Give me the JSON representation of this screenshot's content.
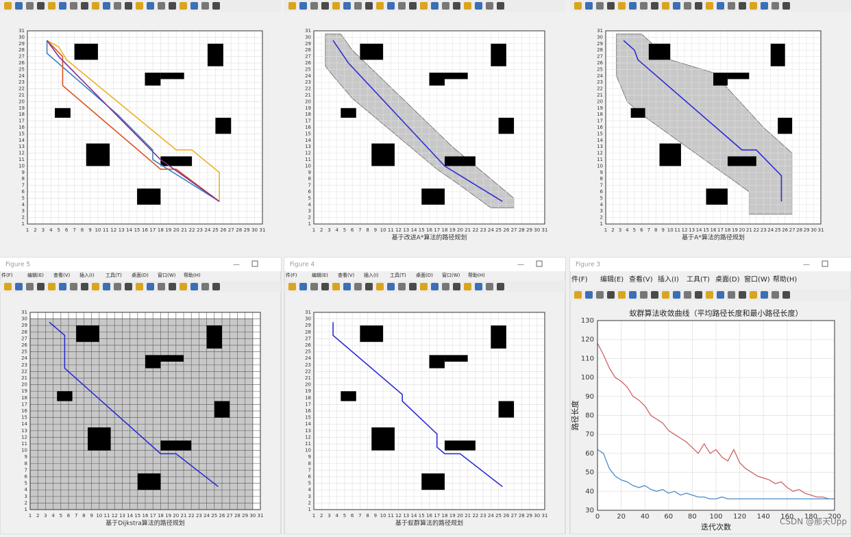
{
  "map_ticks": [
    1,
    2,
    3,
    4,
    5,
    6,
    7,
    8,
    9,
    10,
    11,
    12,
    13,
    14,
    15,
    16,
    17,
    18,
    19,
    20,
    21,
    22,
    23,
    24,
    25,
    26,
    27,
    28,
    29,
    30,
    31
  ],
  "map_lim": [
    1,
    31
  ],
  "menu": [
    "件(F)",
    "编辑(E)",
    "查看(V)",
    "插入(I)",
    "工具(T)",
    "桌面(D)",
    "窗口(W)",
    "帮助(H)"
  ],
  "windows": [
    {
      "title": "Figure 5"
    },
    {
      "title": "Figure 4"
    },
    {
      "title": "Figure 3"
    }
  ],
  "obstacles": [
    [
      7,
      26.5,
      10,
      29
    ],
    [
      24,
      25.5,
      26,
      29
    ],
    [
      16,
      22.5,
      18,
      24.5
    ],
    [
      18,
      23.5,
      21,
      24.5
    ],
    [
      4.5,
      17.5,
      6.5,
      19
    ],
    [
      25,
      15,
      27,
      17.5
    ],
    [
      8.5,
      10,
      11.5,
      13.5
    ],
    [
      18,
      10,
      22,
      11.5
    ],
    [
      15,
      4,
      18,
      6.5
    ]
  ],
  "maps": [
    {
      "grid_color": "#e2e2e2",
      "paths": [
        {
          "color": "#3a7fc0",
          "x": [
            3.5,
            3.5,
            12.5,
            17,
            17,
            25.5
          ],
          "y": [
            29.5,
            27.5,
            18,
            12.5,
            11,
            4.5
          ]
        },
        {
          "color": "#d9531e",
          "x": [
            3.5,
            5.5,
            5.5,
            18,
            20,
            25.5
          ],
          "y": [
            29.5,
            27,
            22.5,
            9.5,
            9.5,
            4.5
          ]
        },
        {
          "color": "#edb120",
          "x": [
            3.5,
            5,
            6,
            20,
            22,
            25.5,
            25.5
          ],
          "y": [
            29.5,
            28.5,
            26.5,
            12.5,
            12.5,
            9,
            4.5
          ]
        },
        {
          "color": "#7e2f8e",
          "x": [
            3.5,
            5,
            18,
            25.5
          ],
          "y": [
            29.5,
            27,
            11,
            4.5
          ]
        }
      ]
    },
    {
      "caption": "基于改进A*算法的路径规划",
      "grid_color": "#e2e2e2",
      "explored": {
        "x": [
          2.5,
          4.5,
          6,
          19,
          23,
          27,
          27,
          24,
          20,
          17,
          6,
          3.5,
          2.5
        ],
        "y": [
          30.5,
          30.5,
          28,
          13,
          9,
          5,
          3.5,
          3.5,
          7,
          9.5,
          20.5,
          24,
          25.5
        ]
      },
      "paths": [
        {
          "color": "#2b2bd6",
          "x": [
            3.5,
            5.5,
            18,
            25.5
          ],
          "y": [
            29.5,
            26,
            10,
            4.5
          ]
        }
      ]
    },
    {
      "caption": "基于A*算法的路径规划",
      "grid_color": "#e2e2e2",
      "explored": {
        "x": [
          2.5,
          6,
          10,
          16,
          23,
          27,
          27,
          21,
          21,
          16,
          6,
          4,
          2.5
        ],
        "y": [
          30.5,
          30.5,
          26.5,
          24.5,
          16,
          12,
          2.5,
          2.5,
          6,
          10,
          18,
          20,
          24
        ]
      },
      "paths": [
        {
          "color": "#2b2bd6",
          "x": [
            3.5,
            5,
            5.5,
            20,
            22,
            25.5,
            25.5
          ],
          "y": [
            29.5,
            28,
            26.5,
            12.5,
            12.5,
            8.5,
            4.5
          ]
        }
      ]
    },
    {
      "caption": "基于Dijkstra算法的路径规划",
      "grid_color": "#555555",
      "explored": {
        "x": [
          1,
          30,
          30,
          1
        ],
        "y": [
          1,
          1,
          30,
          30
        ]
      },
      "paths": [
        {
          "color": "#2b2bd6",
          "x": [
            3.5,
            5.5,
            5.5,
            18,
            20,
            25.5
          ],
          "y": [
            29.5,
            27.5,
            22.5,
            9.5,
            9.5,
            4.5
          ]
        }
      ]
    },
    {
      "caption": "基于蚁群算法的路径规划",
      "grid_color": "#e2e2e2",
      "paths": [
        {
          "color": "#2b2bd6",
          "x": [
            3.5,
            3.5,
            12.5,
            12.5,
            17,
            17,
            18,
            20,
            25.5
          ],
          "y": [
            29.5,
            27.5,
            18.5,
            17.5,
            12.5,
            10.5,
            9.5,
            9.5,
            4.5
          ]
        }
      ]
    }
  ],
  "chart_data": {
    "type": "line",
    "title": "蚁群算法收敛曲线（平均路径长度和最小路径长度）",
    "xlabel": "迭代次数",
    "ylabel": "路径长度",
    "xlim": [
      0,
      200
    ],
    "ylim": [
      30,
      130
    ],
    "xticks": [
      0,
      20,
      40,
      60,
      80,
      100,
      120,
      140,
      160,
      180,
      200
    ],
    "yticks": [
      30,
      40,
      50,
      60,
      70,
      80,
      90,
      100,
      110,
      120,
      130
    ],
    "grid": true,
    "x": [
      0,
      5,
      10,
      15,
      20,
      25,
      30,
      35,
      40,
      45,
      50,
      55,
      60,
      65,
      70,
      75,
      80,
      85,
      90,
      95,
      100,
      105,
      110,
      115,
      120,
      125,
      130,
      135,
      140,
      145,
      150,
      155,
      160,
      165,
      170,
      175,
      180,
      185,
      190,
      195,
      200
    ],
    "series": [
      {
        "color": "#d06060",
        "values": [
          118,
          112,
          105,
          100,
          98,
          95,
          90,
          88,
          85,
          80,
          78,
          76,
          72,
          70,
          68,
          66,
          63,
          60,
          65,
          60,
          62,
          58,
          56,
          62,
          55,
          52,
          50,
          48,
          47,
          46,
          44,
          45,
          42,
          40,
          41,
          39,
          38,
          37,
          37,
          36,
          36
        ]
      },
      {
        "color": "#4a8ac8",
        "values": [
          62,
          60,
          52,
          48,
          46,
          45,
          43,
          42,
          43,
          41,
          40,
          41,
          39,
          40,
          38,
          39,
          38,
          37,
          37,
          36,
          36,
          37,
          36,
          36,
          36,
          36,
          36,
          36,
          36,
          36,
          36,
          36,
          36,
          36,
          36,
          36,
          36,
          36,
          36,
          36,
          36
        ]
      }
    ]
  },
  "watermark": "CSDN @那天Upp"
}
